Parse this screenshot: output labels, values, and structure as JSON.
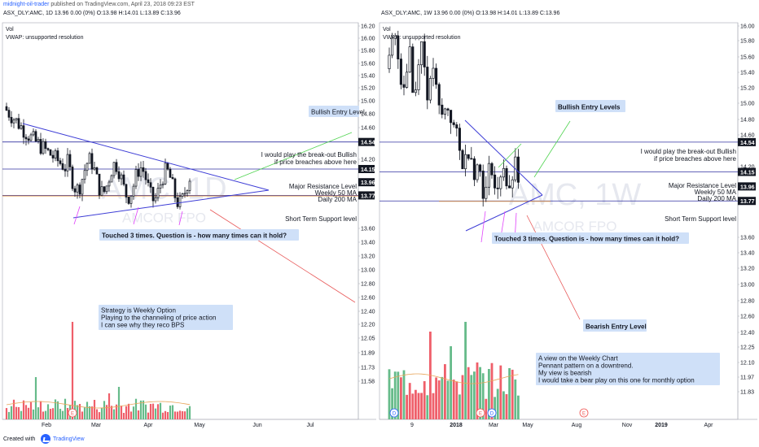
{
  "header": {
    "author": "midnight-oil-trader",
    "published": "published on TradingView.com, April 23, 2018 09:23 EST",
    "left_ohlc": "ASX_DLY:AMC, 1D 13.96 0.00 (0%) O:13.98 H:14.01 L:13.89 C:13.96",
    "right_ohlc": "ASX_DLY:AMC, 1W 13.96 0.00 (0%) O:13.98 H:14.01 L:13.89 C:13.96"
  },
  "footer": {
    "created_with": "Created with",
    "brand": "TradingView"
  },
  "colors": {
    "up": "#26a69a",
    "down": "#ef5350",
    "vol_up": "#66bb8a",
    "vol_down": "#ef5f6a",
    "trend": "#3d3dd6",
    "green_arrow": "#52d452",
    "red_arrow": "#e85a5a",
    "pink": "#e040fb",
    "support": "#e8a55a",
    "label_bg": "#cfe0f8"
  },
  "chart_data": [
    {
      "type": "candlestick",
      "symbol": "ASX_DLY:AMC",
      "interval": "1D",
      "watermark": "AMC, 1D",
      "watermark_sub": "AMCOR FPO",
      "indicators": [
        "Vol",
        "VWAP: unsupported resolution"
      ],
      "x_ticks": [
        "Feb",
        "Mar",
        "Apr",
        "May",
        "Jun",
        "Jul"
      ],
      "y_ticks": [
        "16.20",
        "16.00",
        "15.80",
        "15.60",
        "15.40",
        "15.20",
        "15.00",
        "14.80",
        "14.60",
        "14.20",
        "13.60",
        "13.40",
        "13.20",
        "13.00",
        "12.80",
        "12.60",
        "12.40",
        "12.20",
        "12.05",
        "11.89",
        "11.73",
        "11.58"
      ],
      "price_labels": [
        {
          "value": "14.54",
          "style": "dark"
        },
        {
          "value": "14.15",
          "style": "dark"
        },
        {
          "value": "13.96",
          "style": "dark"
        },
        {
          "value": "13.77",
          "style": "dark"
        }
      ],
      "event_markers": [
        "E"
      ],
      "annotations": [
        "Bullish Entry Level",
        "I would play the break-out Bullish",
        "if price breaches above here",
        "Major Resistance Level",
        "Weekly 50 MA",
        "Daily 200 MA",
        "Short Term Support level",
        "Touched 3 times. Question is - how many times can it hold?",
        "Strategy is Weekly Option",
        "Playing to the channeling of price action",
        "I can see why they reco BPS"
      ]
    },
    {
      "type": "candlestick",
      "symbol": "ASX_DLY:AMC",
      "interval": "1W",
      "watermark": "AMC, 1W",
      "watermark_sub": "AMCOR FPO",
      "indicators": [
        "Vol",
        "VWAP: unsupported resolution"
      ],
      "x_ticks": [
        "9",
        "2018",
        "Mar",
        "May",
        "Aug",
        "Nov",
        "2019",
        "Apr"
      ],
      "y_ticks": [
        "16.00",
        "15.80",
        "15.60",
        "15.40",
        "15.20",
        "15.00",
        "14.80",
        "14.60",
        "14.20",
        "13.60",
        "13.40",
        "13.20",
        "13.00",
        "12.80",
        "12.60",
        "12.40",
        "12.25",
        "12.10",
        "11.97",
        "11.83"
      ],
      "price_labels": [
        {
          "value": "14.54",
          "style": "dark"
        },
        {
          "value": "14.15",
          "style": "dark"
        },
        {
          "value": "13.96",
          "style": "dark"
        },
        {
          "value": "13.77",
          "style": "dark"
        }
      ],
      "event_markers": [
        "D",
        "E",
        "D",
        "E"
      ],
      "annotations": [
        "Bullish Entry Levels",
        "I would play the break-out Bullish",
        "if price breaches above here",
        "Major Resistance Level",
        "Weekly 50 MA",
        "Daily 200 MA",
        "Short Term Support level",
        "Touched 3 times. Question is - how many times can it hold?",
        "Bearish Entry Level",
        "A view on the Weekly Chart",
        "Pennant pattern on a downtrend.",
        "My view is bearish",
        "I would take a bear play on this one for monthly option"
      ]
    }
  ]
}
